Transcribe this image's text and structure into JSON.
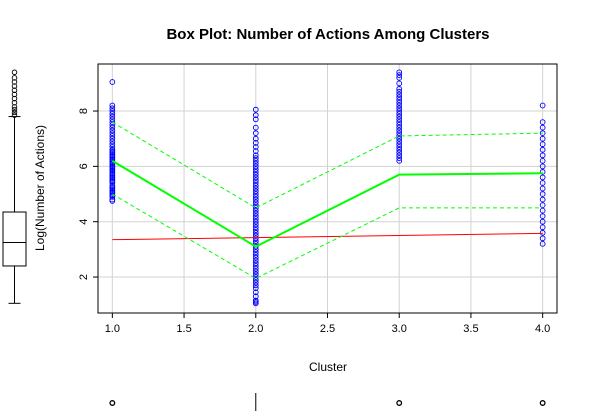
{
  "chart_data": {
    "type": "scatter",
    "title": "Box Plot: Number of Actions Among Clusters",
    "xlabel": "Cluster",
    "ylabel": "Log(Number of Actions)",
    "xlim": [
      0.9,
      4.1
    ],
    "ylim": [
      0.7,
      9.7
    ],
    "x_ticks": [
      "1.0",
      "1.5",
      "2.0",
      "2.5",
      "3.0",
      "3.5",
      "4.0"
    ],
    "y_ticks": [
      "2",
      "4",
      "6",
      "8"
    ],
    "grid": true,
    "colors": {
      "points": "#0000ff",
      "median_line": "#00ff00",
      "quartile_lines": "#00ff00",
      "regression_line": "#ff0000"
    },
    "points": {
      "1": [
        4.75,
        4.8,
        4.9,
        4.95,
        5.0,
        5.05,
        5.1,
        5.15,
        5.2,
        5.25,
        5.3,
        5.4,
        5.45,
        5.5,
        5.55,
        5.6,
        5.65,
        5.7,
        5.75,
        5.8,
        5.85,
        5.9,
        5.95,
        6.0,
        6.05,
        6.1,
        6.15,
        6.2,
        6.25,
        6.3,
        6.35,
        6.4,
        6.45,
        6.5,
        6.55,
        6.6,
        6.7,
        6.8,
        6.9,
        7.0,
        7.1,
        7.2,
        7.3,
        7.4,
        7.5,
        7.6,
        7.7,
        7.8,
        7.9,
        8.0,
        8.1,
        8.2,
        9.05
      ],
      "2": [
        1.05,
        1.1,
        1.15,
        1.3,
        1.45,
        1.6,
        1.7,
        1.8,
        1.9,
        2.0,
        2.1,
        2.2,
        2.3,
        2.4,
        2.5,
        2.6,
        2.7,
        2.8,
        2.9,
        3.0,
        3.1,
        3.2,
        3.3,
        3.4,
        3.5,
        3.6,
        3.7,
        3.8,
        3.9,
        4.0,
        4.1,
        4.2,
        4.3,
        4.4,
        4.5,
        4.6,
        4.7,
        4.8,
        4.9,
        5.0,
        5.1,
        5.2,
        5.3,
        5.4,
        5.5,
        5.6,
        5.7,
        5.8,
        5.9,
        6.0,
        6.1,
        6.2,
        6.3,
        6.4,
        6.55,
        6.7,
        6.85,
        7.0,
        7.2,
        7.4,
        7.7,
        7.85,
        8.05
      ],
      "3": [
        6.2,
        6.3,
        6.4,
        6.5,
        6.6,
        6.7,
        6.8,
        6.9,
        7.0,
        7.1,
        7.2,
        7.3,
        7.4,
        7.5,
        7.6,
        7.7,
        7.8,
        7.9,
        8.0,
        8.1,
        8.2,
        8.3,
        8.4,
        8.5,
        8.6,
        8.7,
        8.8,
        9.0,
        9.2,
        9.3,
        9.4
      ],
      "4": [
        3.2,
        3.4,
        3.6,
        3.8,
        4.0,
        4.2,
        4.4,
        4.6,
        4.8,
        5.0,
        5.2,
        5.4,
        5.6,
        5.8,
        6.0,
        6.2,
        6.4,
        6.6,
        6.8,
        7.0,
        7.2,
        7.4,
        7.6,
        8.2
      ]
    },
    "median_line": [
      {
        "x": 1,
        "y": 6.2
      },
      {
        "x": 2,
        "y": 3.1
      },
      {
        "x": 3,
        "y": 5.7
      },
      {
        "x": 4,
        "y": 5.75
      }
    ],
    "upper_quartile_line": [
      {
        "x": 1,
        "y": 7.6
      },
      {
        "x": 2,
        "y": 4.5
      },
      {
        "x": 3,
        "y": 7.1
      },
      {
        "x": 4,
        "y": 7.2
      }
    ],
    "lower_quartile_line": [
      {
        "x": 1,
        "y": 5.0
      },
      {
        "x": 2,
        "y": 1.95
      },
      {
        "x": 3,
        "y": 4.5
      },
      {
        "x": 4,
        "y": 4.5
      }
    ],
    "regression_line": [
      {
        "x": 1,
        "y": 3.35
      },
      {
        "x": 4,
        "y": 3.58
      }
    ],
    "marginal_y_boxplot": {
      "min": 1.05,
      "q1": 2.4,
      "median": 3.25,
      "q3": 4.35,
      "whisker_high": 7.8,
      "outliers": [
        7.85,
        7.95,
        8.05,
        8.15,
        8.3,
        8.45,
        8.6,
        8.75,
        8.9,
        9.05,
        9.2,
        9.4
      ]
    },
    "marginal_x_boxplot": {
      "median": 2.0,
      "outliers": [
        1.0,
        3.0,
        4.0
      ]
    }
  }
}
